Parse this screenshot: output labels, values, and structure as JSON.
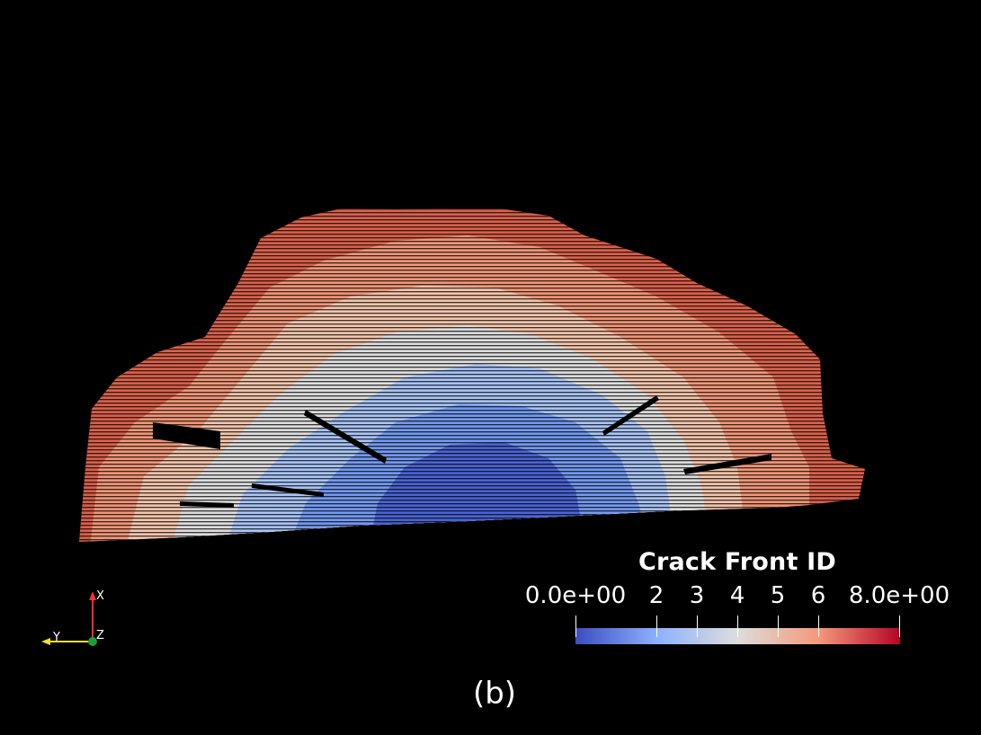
{
  "legend": {
    "title": "Crack Front ID",
    "ticks": [
      "0.0e+00",
      "2",
      "3",
      "4",
      "5",
      "6",
      "8.0e+00"
    ],
    "tick_values": [
      0,
      2,
      3,
      4,
      5,
      6,
      8
    ],
    "range": [
      0,
      8
    ],
    "colormap": [
      "#3b4cc0",
      "#8db0fe",
      "#dddddd",
      "#f4987a",
      "#b40426"
    ]
  },
  "orientation_axes": {
    "x": "X",
    "y": "Y",
    "z": "Z"
  },
  "caption": "(b)",
  "render": {
    "subject": "crack surface mesh colored by crack front ID",
    "background": "#000000"
  }
}
